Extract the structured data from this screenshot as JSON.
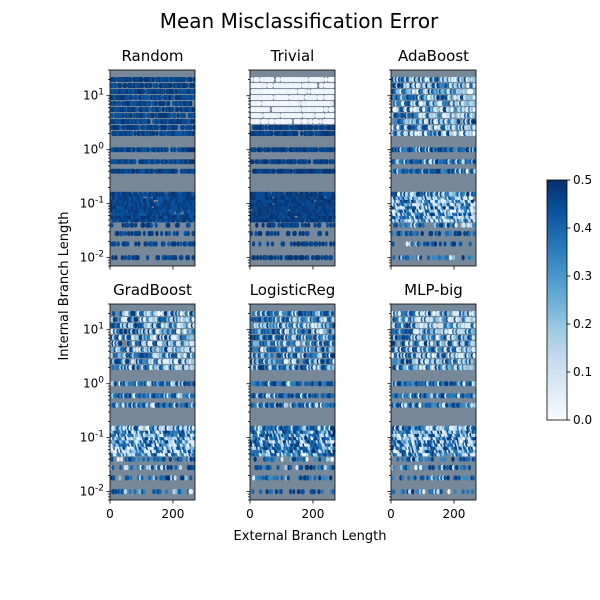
{
  "figure": {
    "title": "Mean Misclassification Error",
    "xlabel": "External Branch Length",
    "ylabel": "Internal Branch Length"
  },
  "colorbar": {
    "colormap": "Blues",
    "min": 0.0,
    "max": 0.5,
    "ticks": [
      "0.0",
      "0.1",
      "0.2",
      "0.3",
      "0.4",
      "0.5"
    ]
  },
  "colors": {
    "axes_background": "#778899",
    "blues_low": "#f7fbff",
    "blues_high": "#08306b"
  },
  "chart_data": {
    "type": "heatmap",
    "kind": "hexbin",
    "x_axis": {
      "label": "External Branch Length",
      "range": [
        0,
        270
      ],
      "ticks": [
        0,
        200
      ],
      "tick_labels": [
        "0",
        "200"
      ]
    },
    "y_axis": {
      "label": "Internal Branch Length",
      "scale": "log",
      "range": [
        0.007,
        30
      ],
      "ticks": [
        0.01,
        0.1,
        1,
        10
      ],
      "tick_labels": [
        "10^-2",
        "10^-1",
        "10^0",
        "10^1"
      ]
    },
    "value_label": "Mean Misclassification Error",
    "value_range": [
      0.0,
      0.5
    ],
    "panels": [
      {
        "title": "Random",
        "approx_mean_error": 0.48,
        "profile": "uniform-high"
      },
      {
        "title": "Trivial",
        "approx_mean_error": 0.4,
        "profile": "near-zero for internal length > ~3, ~0.5 below"
      },
      {
        "title": "AdaBoost",
        "approx_mean_error": 0.3,
        "profile": "low for long internal branches and large external lengths"
      },
      {
        "title": "GradBoost",
        "approx_mean_error": 0.28,
        "profile": "low for long internal branches and large external lengths"
      },
      {
        "title": "LogisticReg",
        "approx_mean_error": 0.36,
        "profile": "mixed, mostly high"
      },
      {
        "title": "MLP-big",
        "approx_mean_error": 0.27,
        "profile": "low for long internal branches and large external lengths"
      }
    ]
  }
}
